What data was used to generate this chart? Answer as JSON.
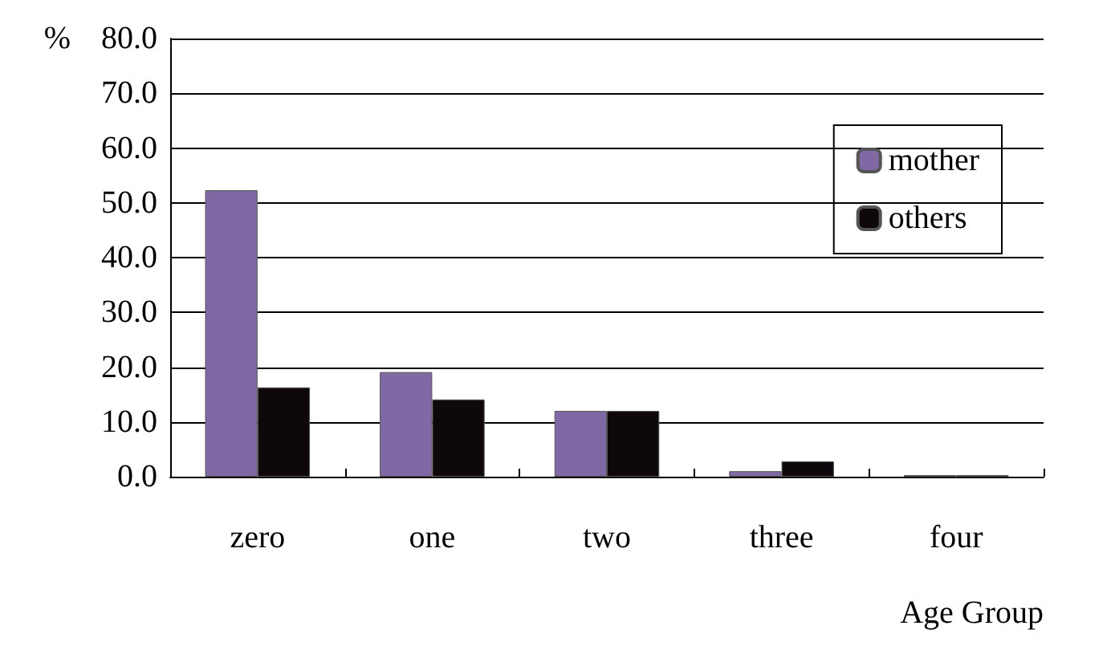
{
  "chart_data": {
    "type": "bar",
    "ylabel": "%",
    "xlabel": "Age Group",
    "categories": [
      "zero",
      "one",
      "two",
      "three",
      "four"
    ],
    "series": [
      {
        "name": "mother",
        "color": "#7f68a4",
        "values": [
          52.3,
          19.1,
          12.0,
          1.0,
          0.3
        ]
      },
      {
        "name": "others",
        "color": "#0e080c",
        "values": [
          16.3,
          14.1,
          12.0,
          2.8,
          0.3
        ]
      }
    ],
    "ylim": [
      0,
      80
    ],
    "yticks": [
      {
        "value": 0,
        "label": "0.0"
      },
      {
        "value": 10,
        "label": "10.0"
      },
      {
        "value": 20,
        "label": "20.0"
      },
      {
        "value": 30,
        "label": "30.0"
      },
      {
        "value": 40,
        "label": "40.0"
      },
      {
        "value": 50,
        "label": "50.0"
      },
      {
        "value": 60,
        "label": "60.0"
      },
      {
        "value": 70,
        "label": "70.0"
      },
      {
        "value": 80,
        "label": "80.0"
      }
    ],
    "grid": "y",
    "legend": "top right"
  }
}
